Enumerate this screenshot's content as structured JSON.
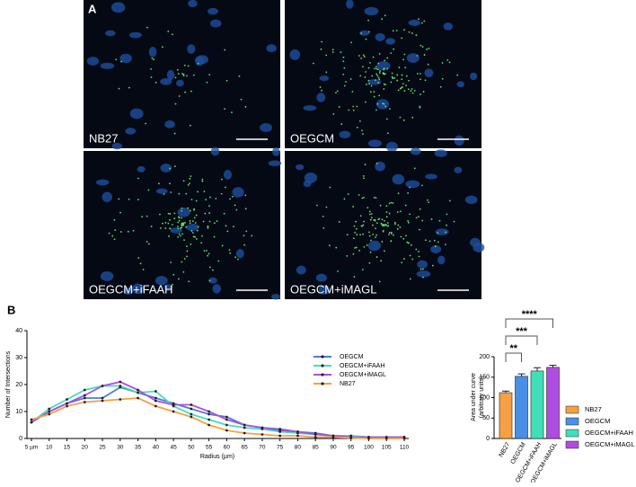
{
  "panel_a": {
    "label": "A",
    "images": [
      {
        "label": "NB27"
      },
      {
        "label": "OEGCM"
      },
      {
        "label": "OEGCM+iFAAH"
      },
      {
        "label": "OEGCM+iMAGL"
      }
    ]
  },
  "panel_b": {
    "label": "B"
  },
  "chart_data": [
    {
      "type": "line",
      "x_label": "Radius (µm)",
      "y_label": "Number of Intersections",
      "categories": [
        "5 µm",
        "10",
        "15",
        "20",
        "25",
        "30",
        "35",
        "40",
        "45",
        "50",
        "55",
        "60",
        "65",
        "70",
        "75",
        "80",
        "85",
        "90",
        "95",
        "100",
        "105",
        "110"
      ],
      "ylim": [
        0,
        40
      ],
      "yticks": [
        0,
        10,
        20,
        30,
        40
      ],
      "series": [
        {
          "name": "OEGCM",
          "color": "#4a7fd6",
          "values": [
            6,
            10,
            13,
            15,
            15,
            19,
            17,
            15,
            13,
            11,
            9,
            8,
            5,
            4,
            3.5,
            2.5,
            2,
            1,
            1,
            0.5,
            0.5,
            0.5
          ]
        },
        {
          "name": "OEGCM+iFAAH",
          "color": "#3fe0b9",
          "values": [
            6,
            11,
            14.5,
            18,
            19.5,
            19.5,
            17,
            17.5,
            12,
            9,
            7,
            5,
            4,
            3.5,
            2.5,
            2,
            1.5,
            1,
            1,
            0.5,
            0.5,
            0.5
          ]
        },
        {
          "name": "OEGCM+iMAGL",
          "color": "#b04de0",
          "values": [
            6,
            10,
            13,
            16,
            19.5,
            21,
            18,
            14,
            12.5,
            12.5,
            10,
            7,
            5,
            4,
            3,
            2.5,
            1.5,
            1,
            0.5,
            0.5,
            0.5,
            0.5
          ]
        },
        {
          "name": "NB27",
          "color": "#f5a043",
          "values": [
            7,
            9,
            12,
            13.5,
            14,
            14.5,
            15,
            12,
            10,
            8,
            5,
            3,
            2,
            1.5,
            1,
            1,
            0.5,
            0.5,
            0.2,
            0,
            0,
            0
          ]
        }
      ]
    },
    {
      "type": "bar",
      "y_label": [
        "Area under curve",
        "(arbitraty units)"
      ],
      "categories": [
        "NB27",
        "OEGCM",
        "OEGCM+iFAAH",
        "OEGCM+iMAGL"
      ],
      "values": [
        112,
        152,
        165,
        174
      ],
      "errors": [
        4,
        6,
        8,
        5
      ],
      "colors": [
        "#f5a043",
        "#4a8fe6",
        "#3fe0b9",
        "#b04de0"
      ],
      "ylim": [
        0,
        200
      ],
      "yticks": [
        0,
        50,
        100,
        150,
        200
      ],
      "significance": [
        "**",
        "***",
        "****"
      ]
    }
  ]
}
